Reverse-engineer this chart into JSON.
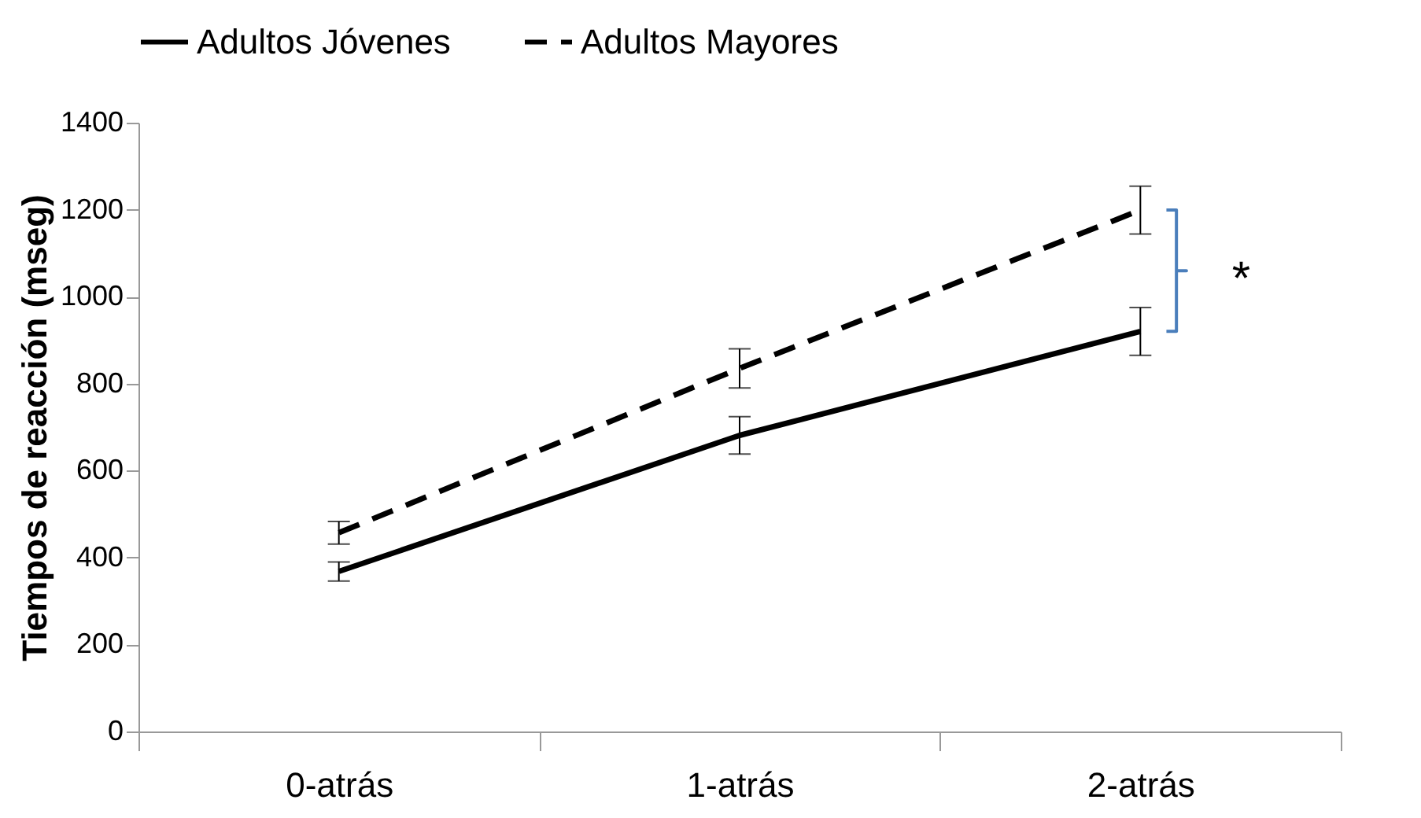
{
  "chart_data": {
    "type": "line",
    "ylabel": "Tiempos de reacción (mseg)",
    "categories": [
      "0-atrás",
      "1-atrás",
      "2-atrás"
    ],
    "series": [
      {
        "name": "Adultos Jóvenes",
        "color": "#000000",
        "line_style": "solid",
        "values": [
          368,
          681,
          920
        ],
        "errors": [
          22,
          43,
          55
        ]
      },
      {
        "name": "Adultos Mayores",
        "color": "#000000",
        "line_style": "dashed",
        "values": [
          457,
          835,
          1199
        ],
        "errors": [
          26,
          45,
          55
        ]
      }
    ],
    "ylim": [
      0,
      1400
    ],
    "yticks": [
      0,
      200,
      400,
      600,
      800,
      1000,
      1200,
      1400
    ],
    "grid": false,
    "legend": "top",
    "marker": "none",
    "annotations": [
      "*"
    ]
  }
}
